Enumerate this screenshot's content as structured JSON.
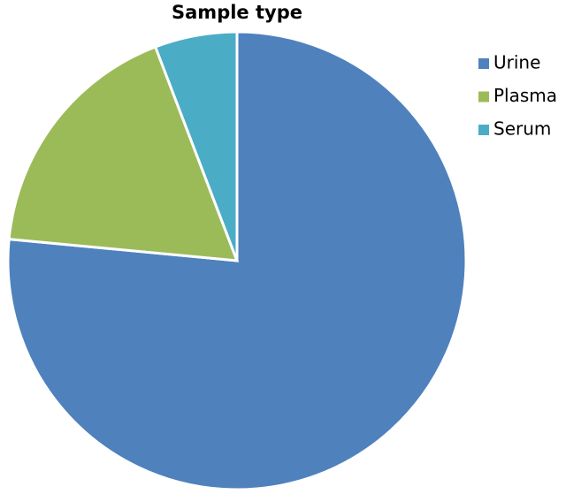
{
  "chart_data": {
    "type": "pie",
    "title": "Sample type",
    "categories": [
      "Urine",
      "Plasma",
      "Serum"
    ],
    "values": [
      76.5,
      17.7,
      5.8
    ],
    "colors": [
      "#4f81bd",
      "#9bbb59",
      "#4bacc6"
    ],
    "legend": "right"
  }
}
